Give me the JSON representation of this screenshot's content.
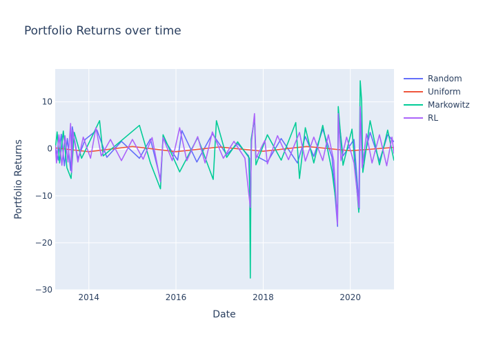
{
  "chart_data": {
    "type": "line",
    "title": "Portfolio Returns over time",
    "xlabel": "Date",
    "ylabel": "Portfolio Returns",
    "x_range": [
      "2013-03-25",
      "2021-01-01"
    ],
    "ylim": [
      -30,
      17
    ],
    "x_ticks": [
      {
        "date": "2014-01-01",
        "label": "2014"
      },
      {
        "date": "2016-01-01",
        "label": "2016"
      },
      {
        "date": "2018-01-01",
        "label": "2018"
      },
      {
        "date": "2020-01-01",
        "label": "2020"
      }
    ],
    "y_ticks": [
      {
        "value": 10,
        "label": "10"
      },
      {
        "value": 0,
        "label": "0"
      },
      {
        "value": -10,
        "label": "−10"
      },
      {
        "value": -20,
        "label": "−20"
      },
      {
        "value": -30,
        "label": "−30"
      }
    ],
    "grid": true,
    "legend_position": "top-right",
    "plot_background": "#e5ecf6",
    "series": [
      {
        "name": "Random",
        "color": "#636efa",
        "points": [
          [
            "2013-03-25",
            0.5
          ],
          [
            "2013-04-20",
            -2.4
          ],
          [
            "2013-05-15",
            3.1
          ],
          [
            "2013-06-10",
            -3.6
          ],
          [
            "2013-07-05",
            2.2
          ],
          [
            "2013-08-01",
            -4.6
          ],
          [
            "2013-08-15",
            4.7
          ],
          [
            "2013-10-01",
            -2.1
          ],
          [
            "2013-12-01",
            2.0
          ],
          [
            "2014-03-10",
            4.0
          ],
          [
            "2014-06-01",
            -1.8
          ],
          [
            "2014-10-01",
            1.6
          ],
          [
            "2015-03-01",
            -2.0
          ],
          [
            "2015-06-01",
            2.1
          ],
          [
            "2015-08-24",
            -6.5
          ],
          [
            "2015-09-15",
            2.3
          ],
          [
            "2016-01-15",
            -2.4
          ],
          [
            "2016-02-20",
            3.9
          ],
          [
            "2016-06-24",
            -2.8
          ],
          [
            "2016-11-01",
            3.2
          ],
          [
            "2017-03-01",
            -1.2
          ],
          [
            "2017-06-01",
            1.1
          ],
          [
            "2017-09-01",
            -1.5
          ],
          [
            "2017-09-15",
            -13.0
          ],
          [
            "2017-09-25",
            1.8
          ],
          [
            "2017-10-20",
            7.0
          ],
          [
            "2017-11-01",
            -1.5
          ],
          [
            "2018-02-05",
            -2.8
          ],
          [
            "2018-06-01",
            2.2
          ],
          [
            "2018-10-15",
            -3.0
          ],
          [
            "2018-12-20",
            2.6
          ],
          [
            "2019-03-01",
            -1.6
          ],
          [
            "2019-05-15",
            4.2
          ],
          [
            "2019-08-01",
            -1.8
          ],
          [
            "2019-09-16",
            -16.5
          ],
          [
            "2019-09-22",
            7.5
          ],
          [
            "2019-11-01",
            -1.5
          ],
          [
            "2020-02-01",
            2.0
          ],
          [
            "2020-03-16",
            -12.8
          ],
          [
            "2020-03-24",
            8.5
          ],
          [
            "2020-04-15",
            -3.0
          ],
          [
            "2020-06-15",
            3.5
          ],
          [
            "2020-09-01",
            -2.6
          ],
          [
            "2020-11-09",
            3.0
          ],
          [
            "2021-01-01",
            1.5
          ]
        ]
      },
      {
        "name": "Uniform",
        "color": "#ef553b",
        "points": [
          [
            "2013-03-25",
            0.2
          ],
          [
            "2014-01-01",
            -0.6
          ],
          [
            "2015-01-01",
            0.5
          ],
          [
            "2016-01-01",
            -0.6
          ],
          [
            "2017-01-01",
            0.4
          ],
          [
            "2018-01-01",
            -0.5
          ],
          [
            "2019-01-01",
            0.5
          ],
          [
            "2020-01-01",
            -0.4
          ],
          [
            "2021-01-01",
            0.3
          ]
        ]
      },
      {
        "name": "Markowitz",
        "color": "#00cc96",
        "points": [
          [
            "2013-03-25",
            -0.3
          ],
          [
            "2013-04-10",
            3.6
          ],
          [
            "2013-05-01",
            -3.0
          ],
          [
            "2013-06-01",
            3.8
          ],
          [
            "2013-07-01",
            -4.0
          ],
          [
            "2013-08-05",
            -6.3
          ],
          [
            "2013-09-01",
            3.5
          ],
          [
            "2013-11-01",
            -2.0
          ],
          [
            "2014-04-01",
            6.0
          ],
          [
            "2014-05-01",
            -1.5
          ],
          [
            "2015-03-01",
            5.0
          ],
          [
            "2015-06-01",
            -3.0
          ],
          [
            "2015-08-24",
            -8.5
          ],
          [
            "2015-09-15",
            3.0
          ],
          [
            "2016-02-01",
            -4.9
          ],
          [
            "2016-07-01",
            2.4
          ],
          [
            "2016-11-08",
            -6.5
          ],
          [
            "2016-12-05",
            6.0
          ],
          [
            "2017-03-01",
            -1.8
          ],
          [
            "2017-06-01",
            1.5
          ],
          [
            "2017-09-08",
            -2.0
          ],
          [
            "2017-09-15",
            -27.5
          ],
          [
            "2017-09-22",
            2.0
          ],
          [
            "2017-10-20",
            6.5
          ],
          [
            "2017-11-01",
            -3.4
          ],
          [
            "2018-02-05",
            3.0
          ],
          [
            "2018-06-01",
            -2.4
          ],
          [
            "2018-10-01",
            5.6
          ],
          [
            "2018-11-01",
            -6.3
          ],
          [
            "2018-12-20",
            4.5
          ],
          [
            "2019-03-01",
            -3.0
          ],
          [
            "2019-05-15",
            5.0
          ],
          [
            "2019-08-01",
            -4.8
          ],
          [
            "2019-09-16",
            -14.0
          ],
          [
            "2019-09-22",
            9.0
          ],
          [
            "2019-11-01",
            -3.5
          ],
          [
            "2020-01-15",
            4.2
          ],
          [
            "2020-03-12",
            -13.5
          ],
          [
            "2020-03-24",
            14.5
          ],
          [
            "2020-04-05",
            10.2
          ],
          [
            "2020-04-15",
            -5.0
          ],
          [
            "2020-06-15",
            6.0
          ],
          [
            "2020-09-01",
            -3.4
          ],
          [
            "2020-11-09",
            4.0
          ],
          [
            "2021-01-01",
            -2.5
          ]
        ]
      },
      {
        "name": "RL",
        "color": "#ab63fa",
        "points": [
          [
            "2013-03-25",
            0.8
          ],
          [
            "2013-04-05",
            -3.0
          ],
          [
            "2013-04-25",
            3.0
          ],
          [
            "2013-05-20",
            -3.5
          ],
          [
            "2013-06-15",
            2.8
          ],
          [
            "2013-07-10",
            -2.8
          ],
          [
            "2013-08-01",
            5.4
          ],
          [
            "2013-08-10",
            -5.0
          ],
          [
            "2013-08-20",
            4.0
          ],
          [
            "2013-10-01",
            -2.8
          ],
          [
            "2013-11-15",
            2.5
          ],
          [
            "2014-01-15",
            -2.0
          ],
          [
            "2014-03-01",
            4.5
          ],
          [
            "2014-04-15",
            -1.5
          ],
          [
            "2014-07-01",
            2.0
          ],
          [
            "2014-10-01",
            -2.5
          ],
          [
            "2015-01-01",
            2.0
          ],
          [
            "2015-04-01",
            -2.2
          ],
          [
            "2015-06-15",
            2.4
          ],
          [
            "2015-08-24",
            -7.0
          ],
          [
            "2015-09-15",
            2.4
          ],
          [
            "2015-12-01",
            -2.5
          ],
          [
            "2016-02-01",
            4.5
          ],
          [
            "2016-04-01",
            -2.5
          ],
          [
            "2016-07-01",
            2.6
          ],
          [
            "2016-09-01",
            -3.0
          ],
          [
            "2016-11-01",
            3.6
          ],
          [
            "2017-02-01",
            -2.0
          ],
          [
            "2017-05-01",
            1.6
          ],
          [
            "2017-08-01",
            -2.0
          ],
          [
            "2017-09-15",
            -12.5
          ],
          [
            "2017-09-25",
            1.5
          ],
          [
            "2017-10-20",
            7.5
          ],
          [
            "2017-11-01",
            -2.0
          ],
          [
            "2018-01-15",
            1.8
          ],
          [
            "2018-02-05",
            -3.2
          ],
          [
            "2018-05-01",
            2.8
          ],
          [
            "2018-08-01",
            -2.3
          ],
          [
            "2018-11-01",
            3.5
          ],
          [
            "2018-12-20",
            -2.6
          ],
          [
            "2019-03-01",
            2.5
          ],
          [
            "2019-05-15",
            -2.5
          ],
          [
            "2019-07-01",
            3.0
          ],
          [
            "2019-08-15",
            -2.5
          ],
          [
            "2019-09-16",
            -16.0
          ],
          [
            "2019-09-22",
            7.5
          ],
          [
            "2019-10-15",
            -2.5
          ],
          [
            "2019-12-01",
            2.5
          ],
          [
            "2020-02-01",
            -3.0
          ],
          [
            "2020-03-12",
            -12.5
          ],
          [
            "2020-03-24",
            9.0
          ],
          [
            "2020-04-10",
            -4.0
          ],
          [
            "2020-05-15",
            3.2
          ],
          [
            "2020-07-01",
            -3.0
          ],
          [
            "2020-09-01",
            3.0
          ],
          [
            "2020-11-01",
            -3.6
          ],
          [
            "2020-12-15",
            2.5
          ],
          [
            "2021-01-01",
            -1.0
          ]
        ]
      }
    ]
  }
}
